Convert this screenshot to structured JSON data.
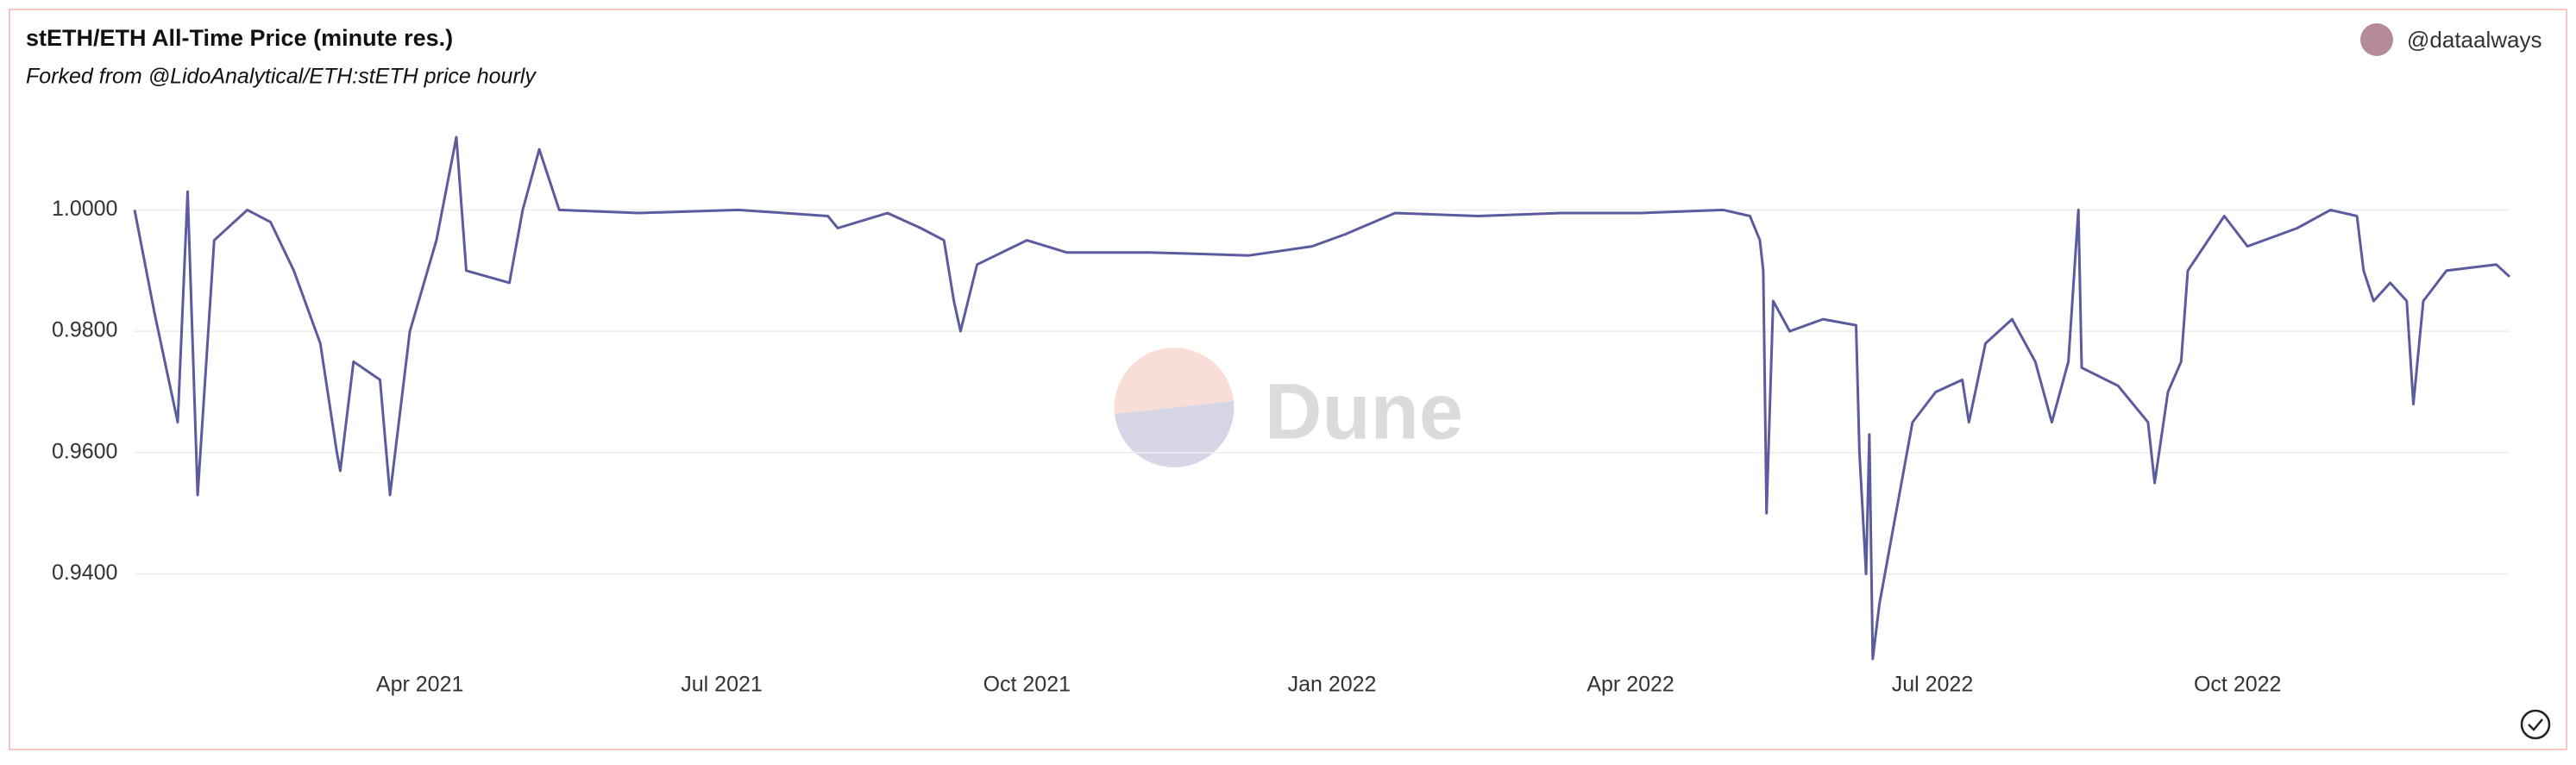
{
  "header": {
    "title": "stETH/ETH All-Time Price (minute res.)",
    "subtitle": "Forked from @LidoAnalytical/ETH:stETH price hourly",
    "user": "@dataalways"
  },
  "watermark": "Dune",
  "chart_data": {
    "type": "line",
    "x": [
      "2021-01-05",
      "2021-01-11",
      "2021-01-18",
      "2021-01-21",
      "2021-01-24",
      "2021-01-29",
      "2021-02-08",
      "2021-02-15",
      "2021-02-22",
      "2021-03-02",
      "2021-03-07",
      "2021-03-08",
      "2021-03-12",
      "2021-03-20",
      "2021-03-23",
      "2021-03-29",
      "2021-04-06",
      "2021-04-12",
      "2021-04-15",
      "2021-04-28",
      "2021-05-02",
      "2021-05-07",
      "2021-05-13",
      "2021-06-06",
      "2021-07-06",
      "2021-08-02",
      "2021-08-05",
      "2021-08-20",
      "2021-08-30",
      "2021-09-06",
      "2021-09-09",
      "2021-09-11",
      "2021-09-16",
      "2021-10-01",
      "2021-10-13",
      "2021-11-07",
      "2021-12-07",
      "2021-12-26",
      "2022-01-05",
      "2022-01-20",
      "2022-02-14",
      "2022-03-11",
      "2022-04-04",
      "2022-04-29",
      "2022-05-07",
      "2022-05-10",
      "2022-05-11",
      "2022-05-12",
      "2022-05-14",
      "2022-05-19",
      "2022-05-29",
      "2022-06-08",
      "2022-06-09",
      "2022-06-11",
      "2022-06-12",
      "2022-06-13",
      "2022-06-15",
      "2022-06-20",
      "2022-06-25",
      "2022-07-02",
      "2022-07-10",
      "2022-07-12",
      "2022-07-17",
      "2022-07-25",
      "2022-08-01",
      "2022-08-06",
      "2022-08-11",
      "2022-08-14",
      "2022-08-15",
      "2022-08-26",
      "2022-09-04",
      "2022-09-06",
      "2022-09-10",
      "2022-09-14",
      "2022-09-16",
      "2022-09-27",
      "2022-10-04",
      "2022-10-19",
      "2022-10-29",
      "2022-11-06",
      "2022-11-08",
      "2022-11-11",
      "2022-11-16",
      "2022-11-21",
      "2022-11-23",
      "2022-11-26",
      "2022-12-03",
      "2022-12-18",
      "2022-12-22"
    ],
    "series": [
      {
        "name": "stETH/ETH",
        "color": "#5b5b9f",
        "values": [
          1.0,
          0.983,
          0.965,
          1.003,
          0.953,
          0.995,
          1.0,
          0.998,
          0.99,
          0.978,
          0.96,
          0.957,
          0.975,
          0.972,
          0.953,
          0.98,
          0.995,
          1.012,
          0.99,
          0.988,
          1.0,
          1.01,
          1.0,
          0.9995,
          1.0,
          0.999,
          0.997,
          0.9995,
          0.997,
          0.995,
          0.985,
          0.98,
          0.991,
          0.995,
          0.993,
          0.993,
          0.9925,
          0.994,
          0.996,
          0.9995,
          0.999,
          0.9995,
          0.9995,
          1.0,
          0.999,
          0.995,
          0.99,
          0.95,
          0.985,
          0.98,
          0.982,
          0.981,
          0.96,
          0.94,
          0.963,
          0.926,
          0.935,
          0.95,
          0.965,
          0.97,
          0.972,
          0.965,
          0.978,
          0.982,
          0.975,
          0.965,
          0.975,
          1.0,
          0.974,
          0.971,
          0.965,
          0.955,
          0.97,
          0.975,
          0.99,
          0.999,
          0.994,
          0.997,
          1.0,
          0.999,
          0.99,
          0.985,
          0.988,
          0.985,
          0.968,
          0.985,
          0.99,
          0.991,
          0.989
        ]
      }
    ],
    "xlim": [
      "2021-01-05",
      "2022-12-22"
    ],
    "xticks": [
      {
        "value": "2021-04-01",
        "label": "Apr 2021"
      },
      {
        "value": "2021-07-01",
        "label": "Jul 2021"
      },
      {
        "value": "2021-10-01",
        "label": "Oct 2021"
      },
      {
        "value": "2022-01-01",
        "label": "Jan 2022"
      },
      {
        "value": "2022-04-01",
        "label": "Apr 2022"
      },
      {
        "value": "2022-07-01",
        "label": "Jul 2022"
      },
      {
        "value": "2022-10-01",
        "label": "Oct 2022"
      }
    ],
    "ylim": [
      0.925,
      1.013
    ],
    "yticks": [
      {
        "value": 0.94,
        "label": "0.9400"
      },
      {
        "value": 0.96,
        "label": "0.9600"
      },
      {
        "value": 0.98,
        "label": "0.9800"
      },
      {
        "value": 1,
        "label": "1.0000"
      }
    ],
    "grid": true
  }
}
